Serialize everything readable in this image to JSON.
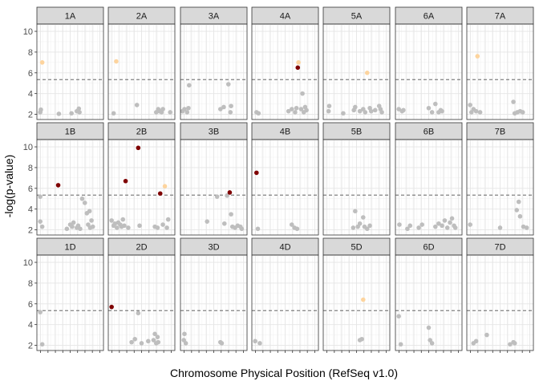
{
  "chart_data": {
    "type": "scatter",
    "xlabel": "Chromosome Physical Position (RefSeq v1.0)",
    "ylabel": "-log(p-value)",
    "ylim": [
      1.5,
      10.7
    ],
    "y_ticks": [
      2,
      4,
      6,
      8,
      10
    ],
    "x_tick_labels": "hidden",
    "threshold": 5.35,
    "grid": true,
    "colors": {
      "grey": "#bebebe",
      "light": "#fdd49e",
      "dark": "#7f0000",
      "strip_fill": "#d9d9d9",
      "threshold_line": "#4d4d4d"
    },
    "rows": [
      "A",
      "B",
      "D"
    ],
    "columns": [
      "1",
      "2",
      "3",
      "4",
      "5",
      "6",
      "7"
    ],
    "panels": [
      {
        "label": "1A",
        "points": [
          [
            0.05,
            2.2,
            "grey"
          ],
          [
            0.06,
            2.45,
            "grey"
          ],
          [
            0.08,
            7.0,
            "light"
          ],
          [
            0.33,
            2.05,
            "grey"
          ],
          [
            0.52,
            2.1,
            "grey"
          ],
          [
            0.6,
            2.3,
            "grey"
          ],
          [
            0.63,
            2.55,
            "grey"
          ],
          [
            0.64,
            2.2,
            "grey"
          ]
        ]
      },
      {
        "label": "2A",
        "points": [
          [
            0.08,
            2.1,
            "grey"
          ],
          [
            0.12,
            7.1,
            "light"
          ],
          [
            0.43,
            2.9,
            "grey"
          ],
          [
            0.72,
            2.2,
            "grey"
          ],
          [
            0.75,
            2.5,
            "grey"
          ],
          [
            0.77,
            2.3,
            "grey"
          ],
          [
            0.8,
            2.2,
            "grey"
          ],
          [
            0.82,
            2.5,
            "grey"
          ],
          [
            0.93,
            2.2,
            "grey"
          ]
        ]
      },
      {
        "label": "3A",
        "points": [
          [
            0.03,
            2.3,
            "grey"
          ],
          [
            0.06,
            2.5,
            "grey"
          ],
          [
            0.1,
            2.2,
            "grey"
          ],
          [
            0.12,
            2.6,
            "grey"
          ],
          [
            0.13,
            4.8,
            "grey"
          ],
          [
            0.6,
            2.5,
            "grey"
          ],
          [
            0.65,
            2.7,
            "grey"
          ],
          [
            0.72,
            4.9,
            "grey"
          ],
          [
            0.75,
            2.2,
            "grey"
          ],
          [
            0.76,
            2.8,
            "grey"
          ]
        ]
      },
      {
        "label": "4A",
        "points": [
          [
            0.07,
            2.2,
            "grey"
          ],
          [
            0.1,
            2.1,
            "grey"
          ],
          [
            0.55,
            2.3,
            "grey"
          ],
          [
            0.6,
            2.5,
            "grey"
          ],
          [
            0.65,
            2.2,
            "grey"
          ],
          [
            0.67,
            2.6,
            "grey"
          ],
          [
            0.69,
            6.5,
            "dark"
          ],
          [
            0.7,
            7.0,
            "light"
          ],
          [
            0.74,
            2.5,
            "grey"
          ],
          [
            0.76,
            4.0,
            "grey"
          ],
          [
            0.78,
            2.2,
            "grey"
          ],
          [
            0.8,
            2.7,
            "grey"
          ],
          [
            0.82,
            2.4,
            "grey"
          ]
        ]
      },
      {
        "label": "5A",
        "points": [
          [
            0.08,
            2.3,
            "grey"
          ],
          [
            0.09,
            2.8,
            "grey"
          ],
          [
            0.3,
            2.1,
            "grey"
          ],
          [
            0.46,
            2.4,
            "grey"
          ],
          [
            0.48,
            2.7,
            "grey"
          ],
          [
            0.55,
            2.3,
            "grey"
          ],
          [
            0.6,
            2.5,
            "grey"
          ],
          [
            0.63,
            2.2,
            "grey"
          ],
          [
            0.66,
            6.0,
            "light"
          ],
          [
            0.7,
            2.6,
            "grey"
          ],
          [
            0.72,
            2.3,
            "grey"
          ],
          [
            0.78,
            2.4,
            "grey"
          ],
          [
            0.84,
            2.8,
            "grey"
          ],
          [
            0.86,
            2.5,
            "grey"
          ],
          [
            0.88,
            2.2,
            "grey"
          ]
        ]
      },
      {
        "label": "6A",
        "points": [
          [
            0.05,
            2.5,
            "grey"
          ],
          [
            0.1,
            2.3,
            "grey"
          ],
          [
            0.12,
            2.4,
            "grey"
          ],
          [
            0.5,
            2.6,
            "grey"
          ],
          [
            0.55,
            2.2,
            "grey"
          ],
          [
            0.6,
            3.0,
            "grey"
          ],
          [
            0.65,
            2.2,
            "grey"
          ],
          [
            0.68,
            2.4,
            "grey"
          ],
          [
            0.7,
            2.3,
            "grey"
          ]
        ]
      },
      {
        "label": "7A",
        "points": [
          [
            0.05,
            2.9,
            "grey"
          ],
          [
            0.07,
            2.2,
            "grey"
          ],
          [
            0.1,
            2.5,
            "grey"
          ],
          [
            0.14,
            2.3,
            "grey"
          ],
          [
            0.16,
            7.6,
            "light"
          ],
          [
            0.2,
            2.2,
            "grey"
          ],
          [
            0.7,
            3.2,
            "grey"
          ],
          [
            0.72,
            2.1,
            "grey"
          ],
          [
            0.76,
            2.2,
            "grey"
          ],
          [
            0.8,
            2.3,
            "grey"
          ],
          [
            0.84,
            2.2,
            "grey"
          ]
        ]
      },
      {
        "label": "1B",
        "points": [
          [
            0.05,
            5.2,
            "grey"
          ],
          [
            0.08,
            2.3,
            "grey"
          ],
          [
            0.05,
            2.8,
            "grey"
          ],
          [
            0.32,
            6.3,
            "dark"
          ],
          [
            0.45,
            2.1,
            "grey"
          ],
          [
            0.5,
            2.5,
            "grey"
          ],
          [
            0.53,
            2.3,
            "grey"
          ],
          [
            0.55,
            2.7,
            "grey"
          ],
          [
            0.6,
            2.2,
            "grey"
          ],
          [
            0.62,
            2.4,
            "grey"
          ],
          [
            0.65,
            2.1,
            "grey"
          ],
          [
            0.68,
            5.0,
            "grey"
          ],
          [
            0.72,
            4.6,
            "grey"
          ],
          [
            0.75,
            3.6,
            "grey"
          ],
          [
            0.77,
            2.5,
            "grey"
          ],
          [
            0.79,
            3.8,
            "grey"
          ],
          [
            0.8,
            2.2,
            "grey"
          ],
          [
            0.82,
            2.9,
            "grey"
          ],
          [
            0.84,
            2.3,
            "grey"
          ]
        ]
      },
      {
        "label": "2B",
        "points": [
          [
            0.05,
            2.9,
            "grey"
          ],
          [
            0.08,
            2.4,
            "grey"
          ],
          [
            0.1,
            2.6,
            "grey"
          ],
          [
            0.13,
            2.2,
            "grey"
          ],
          [
            0.15,
            2.7,
            "grey"
          ],
          [
            0.18,
            2.5,
            "grey"
          ],
          [
            0.2,
            2.3,
            "grey"
          ],
          [
            0.22,
            3.0,
            "grey"
          ],
          [
            0.24,
            2.4,
            "grey"
          ],
          [
            0.26,
            6.7,
            "dark"
          ],
          [
            0.3,
            2.2,
            "grey"
          ],
          [
            0.45,
            9.9,
            "dark"
          ],
          [
            0.47,
            2.4,
            "grey"
          ],
          [
            0.7,
            2.3,
            "grey"
          ],
          [
            0.74,
            2.2,
            "grey"
          ],
          [
            0.78,
            5.5,
            "dark"
          ],
          [
            0.82,
            2.5,
            "grey"
          ],
          [
            0.85,
            6.2,
            "light"
          ],
          [
            0.88,
            2.2,
            "grey"
          ],
          [
            0.9,
            3.0,
            "grey"
          ]
        ]
      },
      {
        "label": "3B",
        "points": [
          [
            0.4,
            2.8,
            "grey"
          ],
          [
            0.55,
            5.2,
            "grey"
          ],
          [
            0.66,
            2.6,
            "grey"
          ],
          [
            0.7,
            5.3,
            "grey"
          ],
          [
            0.74,
            5.6,
            "dark"
          ],
          [
            0.76,
            3.5,
            "grey"
          ],
          [
            0.78,
            2.3,
            "grey"
          ],
          [
            0.82,
            2.2,
            "grey"
          ],
          [
            0.86,
            2.4,
            "grey"
          ],
          [
            0.9,
            2.3,
            "grey"
          ],
          [
            0.92,
            2.1,
            "grey"
          ]
        ]
      },
      {
        "label": "4B",
        "points": [
          [
            0.07,
            7.5,
            "dark"
          ],
          [
            0.09,
            2.1,
            "grey"
          ],
          [
            0.6,
            2.5,
            "grey"
          ],
          [
            0.64,
            2.2,
            "grey"
          ],
          [
            0.68,
            2.1,
            "grey"
          ]
        ]
      },
      {
        "label": "5B",
        "points": [
          [
            0.45,
            2.2,
            "grey"
          ],
          [
            0.48,
            3.8,
            "grey"
          ],
          [
            0.52,
            2.3,
            "grey"
          ],
          [
            0.55,
            2.6,
            "grey"
          ],
          [
            0.6,
            3.2,
            "grey"
          ],
          [
            0.62,
            2.3,
            "grey"
          ],
          [
            0.66,
            2.1,
            "grey"
          ],
          [
            0.7,
            2.4,
            "grey"
          ]
        ]
      },
      {
        "label": "6B",
        "points": [
          [
            0.06,
            2.5,
            "grey"
          ],
          [
            0.18,
            2.1,
            "grey"
          ],
          [
            0.22,
            2.4,
            "grey"
          ],
          [
            0.35,
            2.2,
            "grey"
          ],
          [
            0.4,
            2.5,
            "grey"
          ],
          [
            0.6,
            2.3,
            "grey"
          ],
          [
            0.65,
            2.6,
            "grey"
          ],
          [
            0.7,
            2.4,
            "grey"
          ],
          [
            0.74,
            2.9,
            "grey"
          ],
          [
            0.78,
            2.2,
            "grey"
          ],
          [
            0.82,
            2.7,
            "grey"
          ],
          [
            0.85,
            3.1,
            "grey"
          ],
          [
            0.88,
            2.4,
            "grey"
          ],
          [
            0.9,
            2.2,
            "grey"
          ]
        ]
      },
      {
        "label": "7B",
        "points": [
          [
            0.05,
            2.5,
            "grey"
          ],
          [
            0.5,
            2.2,
            "grey"
          ],
          [
            0.75,
            3.9,
            "grey"
          ],
          [
            0.78,
            4.7,
            "grey"
          ],
          [
            0.8,
            3.3,
            "grey"
          ],
          [
            0.85,
            2.3,
            "grey"
          ],
          [
            0.9,
            2.2,
            "grey"
          ]
        ]
      },
      {
        "label": "1D",
        "points": [
          [
            0.05,
            5.2,
            "grey"
          ],
          [
            0.08,
            2.1,
            "grey"
          ]
        ]
      },
      {
        "label": "2D",
        "points": [
          [
            0.05,
            5.7,
            "dark"
          ],
          [
            0.35,
            2.3,
            "grey"
          ],
          [
            0.4,
            2.6,
            "grey"
          ],
          [
            0.45,
            5.1,
            "grey"
          ],
          [
            0.5,
            2.2,
            "grey"
          ],
          [
            0.6,
            2.4,
            "grey"
          ],
          [
            0.68,
            2.5,
            "grey"
          ],
          [
            0.7,
            3.1,
            "grey"
          ],
          [
            0.72,
            2.2,
            "grey"
          ],
          [
            0.74,
            2.8,
            "grey"
          ],
          [
            0.75,
            2.3,
            "grey"
          ]
        ]
      },
      {
        "label": "3D",
        "points": [
          [
            0.05,
            2.5,
            "grey"
          ],
          [
            0.06,
            3.1,
            "grey"
          ],
          [
            0.08,
            2.2,
            "grey"
          ],
          [
            0.6,
            2.3,
            "grey"
          ],
          [
            0.62,
            2.2,
            "grey"
          ]
        ]
      },
      {
        "label": "4D",
        "points": [
          [
            0.05,
            2.4,
            "grey"
          ],
          [
            0.12,
            2.2,
            "grey"
          ]
        ]
      },
      {
        "label": "5D",
        "points": [
          [
            0.55,
            2.5,
            "grey"
          ],
          [
            0.58,
            2.6,
            "grey"
          ],
          [
            0.6,
            6.4,
            "light"
          ]
        ]
      },
      {
        "label": "6D",
        "points": [
          [
            0.05,
            4.8,
            "grey"
          ],
          [
            0.08,
            2.1,
            "grey"
          ],
          [
            0.5,
            3.7,
            "grey"
          ],
          [
            0.52,
            2.5,
            "grey"
          ],
          [
            0.55,
            2.2,
            "grey"
          ]
        ]
      },
      {
        "label": "7D",
        "points": [
          [
            0.1,
            2.2,
            "grey"
          ],
          [
            0.14,
            2.4,
            "grey"
          ],
          [
            0.3,
            3.0,
            "grey"
          ],
          [
            0.65,
            2.1,
            "grey"
          ],
          [
            0.7,
            2.3,
            "grey"
          ],
          [
            0.72,
            2.2,
            "grey"
          ]
        ]
      }
    ]
  }
}
